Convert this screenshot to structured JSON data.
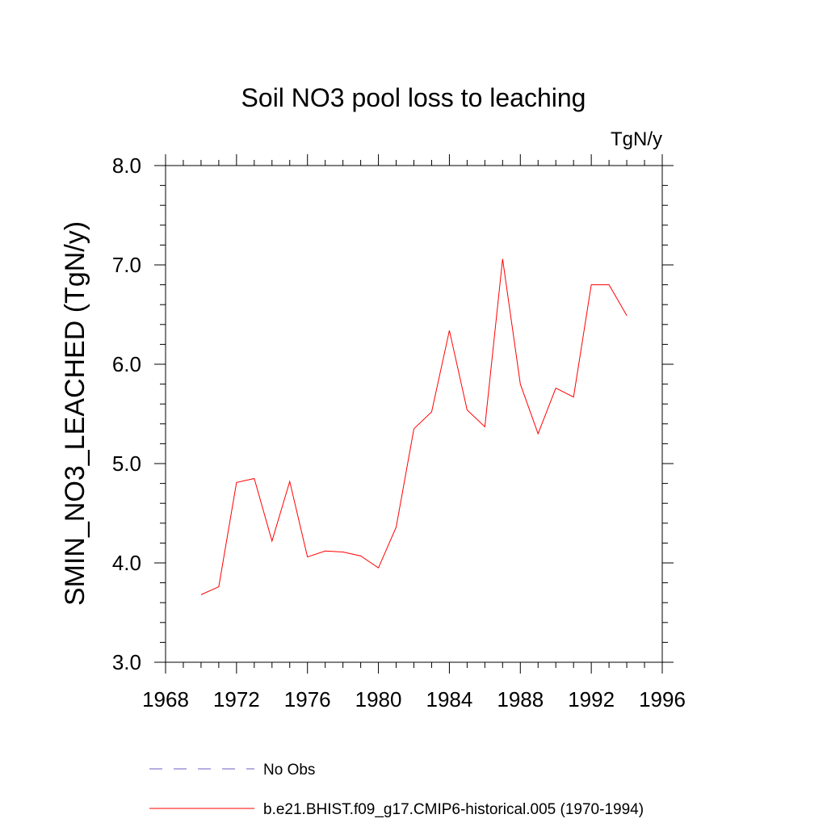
{
  "chart_data": {
    "type": "line",
    "title": "Soil NO3 pool loss to leaching",
    "units": "TgN/y",
    "ylabel": "SMIN_NO3_LEACHED  (TgN/y)",
    "xlabel": "",
    "xlim": [
      1968,
      1996
    ],
    "ylim": [
      3.0,
      8.0
    ],
    "x_ticks": [
      "1968",
      "1972",
      "1976",
      "1980",
      "1984",
      "1988",
      "1992",
      "1996"
    ],
    "y_ticks": [
      "3.0",
      "4.0",
      "5.0",
      "6.0",
      "7.0",
      "8.0"
    ],
    "grid": false,
    "legend_position": "bottom",
    "series": [
      {
        "name": "No Obs",
        "color": "#6b5fc4",
        "dash": "dashed",
        "x": [],
        "y": []
      },
      {
        "name": "b.e21.BHIST.f09_g17.CMIP6-historical.005 (1970-1994)",
        "color": "#ff0000",
        "dash": "solid",
        "x": [
          1970,
          1971,
          1972,
          1973,
          1974,
          1975,
          1976,
          1977,
          1978,
          1979,
          1980,
          1981,
          1982,
          1983,
          1984,
          1985,
          1986,
          1987,
          1988,
          1989,
          1990,
          1991,
          1992,
          1993,
          1994
        ],
        "y": [
          3.68,
          3.76,
          4.81,
          4.85,
          4.22,
          4.82,
          4.06,
          4.12,
          4.11,
          4.07,
          3.95,
          4.36,
          5.35,
          5.52,
          6.34,
          5.54,
          5.37,
          7.06,
          5.8,
          5.3,
          5.76,
          5.67,
          6.8,
          6.8,
          6.49
        ]
      }
    ]
  }
}
